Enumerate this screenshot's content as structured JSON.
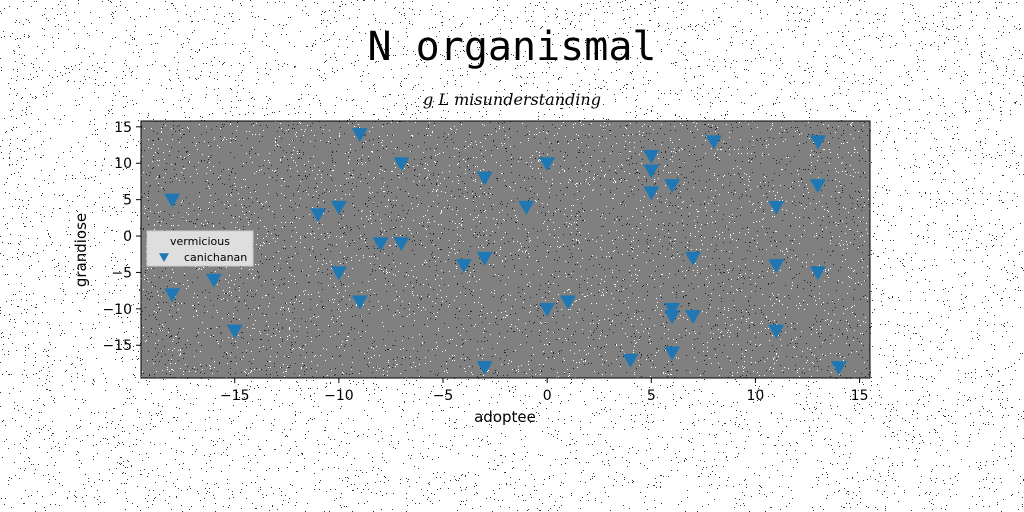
{
  "chart_data": {
    "type": "scatter",
    "title": "N organismal",
    "subtitle": "g L misunderstanding",
    "xlabel": "adoptee",
    "ylabel": "grandiose",
    "xlim": [
      -19.5,
      15.5
    ],
    "ylim": [
      -19.5,
      15.8
    ],
    "xticks": [
      -15,
      -10,
      -5,
      0,
      5,
      10,
      15
    ],
    "yticks": [
      -15,
      -10,
      -5,
      0,
      5,
      10,
      15
    ],
    "grid": false,
    "legend": {
      "title": "vermicious",
      "placement": "center-left"
    },
    "series": [
      {
        "name": "canichanan",
        "marker": "triangle-down",
        "color": "#1f77b4",
        "points": [
          [
            -18,
            5
          ],
          [
            -18,
            -8
          ],
          [
            -16,
            -6
          ],
          [
            -15,
            -13
          ],
          [
            -11,
            3
          ],
          [
            -10,
            4
          ],
          [
            -10,
            -5
          ],
          [
            -9,
            14
          ],
          [
            -9,
            -9
          ],
          [
            -8,
            -1
          ],
          [
            -7,
            10
          ],
          [
            -7,
            -1
          ],
          [
            -4,
            -4
          ],
          [
            -3,
            8
          ],
          [
            -3,
            -3
          ],
          [
            -3,
            -18
          ],
          [
            -1,
            4
          ],
          [
            0,
            10
          ],
          [
            0,
            -10
          ],
          [
            1,
            -9
          ],
          [
            4,
            -17
          ],
          [
            5,
            11
          ],
          [
            5,
            9
          ],
          [
            5,
            6
          ],
          [
            6,
            7
          ],
          [
            6,
            -10
          ],
          [
            6,
            -11
          ],
          [
            6,
            -16
          ],
          [
            7,
            -3
          ],
          [
            7,
            -11
          ],
          [
            8,
            13
          ],
          [
            11,
            4
          ],
          [
            11,
            -4
          ],
          [
            11,
            -13
          ],
          [
            13,
            13
          ],
          [
            13,
            7
          ],
          [
            13,
            -5
          ],
          [
            14,
            -18
          ]
        ]
      }
    ]
  },
  "colors": {
    "plot_background": "#808080",
    "marker": "#1f77b4"
  }
}
